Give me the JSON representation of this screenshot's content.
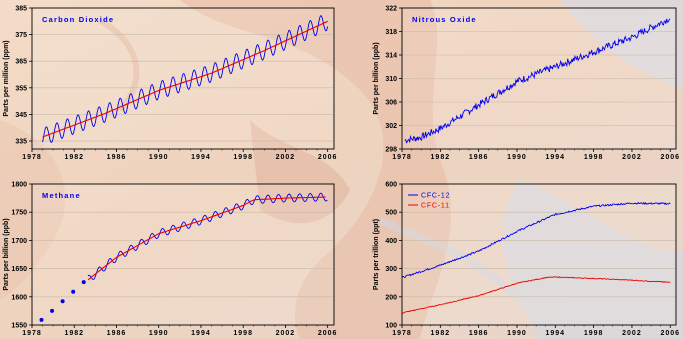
{
  "colors": {
    "blue": "#0000ee",
    "red": "#ee0000",
    "frame": "#000000",
    "grid": "#c8b8a8"
  },
  "chart_data": [
    {
      "type": "line",
      "title": "Carbon Dioxide",
      "ylabel": "Parts per million (ppm)",
      "xlim": [
        1978,
        2006.6
      ],
      "ylim": [
        332,
        385
      ],
      "xticks": [
        1978,
        1982,
        1986,
        1990,
        1994,
        1998,
        2002,
        2006
      ],
      "yticks": [
        335,
        345,
        355,
        365,
        375,
        385
      ],
      "series": [
        {
          "color": "blue",
          "style": "seasonal",
          "x": [
            1979,
            1985,
            1990,
            1995,
            2000,
            2006
          ],
          "y": [
            336.5,
            345.5,
            354.0,
            360.5,
            369.0,
            380.0
          ],
          "amplitude": 3.3
        },
        {
          "color": "red",
          "style": "line",
          "x": [
            1979,
            1985,
            1990,
            1995,
            2000,
            2006
          ],
          "y": [
            336.5,
            345.5,
            354.0,
            360.5,
            369.0,
            380.0
          ]
        }
      ]
    },
    {
      "type": "line",
      "title": "Nitrous Oxide",
      "ylabel": "Parts per billion (ppb)",
      "xlim": [
        1978,
        2006.6
      ],
      "ylim": [
        298,
        322
      ],
      "xticks": [
        1978,
        1982,
        1986,
        1990,
        1994,
        1998,
        2002,
        2006
      ],
      "yticks": [
        298,
        302,
        306,
        310,
        314,
        318,
        322
      ],
      "series": [
        {
          "color": "blue",
          "style": "noisy",
          "x": [
            1978.3,
            1980,
            1982,
            1984,
            1986,
            1990,
            1994,
            1998,
            2002,
            2006
          ],
          "y": [
            299.5,
            300.0,
            301.5,
            303.5,
            305.5,
            309.5,
            312.0,
            314.5,
            317.0,
            320.3
          ],
          "noise": 0.6
        }
      ]
    },
    {
      "type": "line",
      "title": "Methane",
      "ylabel": "Parts per billion (ppb)",
      "xlim": [
        1978,
        2006.6
      ],
      "ylim": [
        1550,
        1800
      ],
      "xticks": [
        1978,
        1982,
        1986,
        1990,
        1994,
        1998,
        2002,
        2006
      ],
      "yticks": [
        1550,
        1600,
        1650,
        1700,
        1750,
        1800
      ],
      "series": [
        {
          "color": "blue",
          "style": "markers",
          "x": [
            1978.9,
            1979.9,
            1980.9,
            1981.9,
            1982.9
          ],
          "y": [
            1559,
            1575,
            1592,
            1609,
            1626
          ]
        },
        {
          "color": "blue",
          "style": "seasonal",
          "x": [
            1983.3,
            1986,
            1990,
            1994,
            1998,
            1999,
            2002,
            2006
          ],
          "y": [
            1630,
            1670,
            1712,
            1735,
            1762,
            1772,
            1775,
            1777
          ],
          "amplitude": 7
        },
        {
          "color": "red",
          "style": "line",
          "x": [
            1983.3,
            1986,
            1990,
            1994,
            1998,
            1999,
            2002,
            2006
          ],
          "y": [
            1630,
            1670,
            1712,
            1735,
            1762,
            1772,
            1775,
            1777
          ]
        }
      ]
    },
    {
      "type": "line",
      "title": "",
      "ylabel": "Parts per trillion (ppt)",
      "xlim": [
        1978,
        2006.6
      ],
      "ylim": [
        100,
        600
      ],
      "xticks": [
        1978,
        1982,
        1986,
        1990,
        1994,
        1998,
        2002,
        2006
      ],
      "yticks": [
        100,
        200,
        300,
        400,
        500,
        600
      ],
      "legend": [
        "CFC-12",
        "CFC-11"
      ],
      "series": [
        {
          "name": "CFC-12",
          "color": "blue",
          "style": "noisy",
          "x": [
            1978,
            1982,
            1986,
            1990,
            1994,
            1998,
            2002,
            2006
          ],
          "y": [
            268,
            312,
            362,
            432,
            492,
            521,
            532,
            530
          ],
          "noise": 3
        },
        {
          "name": "CFC-11",
          "color": "red",
          "style": "noisy",
          "x": [
            1978,
            1982,
            1986,
            1990,
            1993,
            1994,
            1998,
            2002,
            2006
          ],
          "y": [
            143,
            172,
            204,
            248,
            268,
            270,
            265,
            259,
            251
          ],
          "noise": 1.5
        }
      ]
    }
  ]
}
